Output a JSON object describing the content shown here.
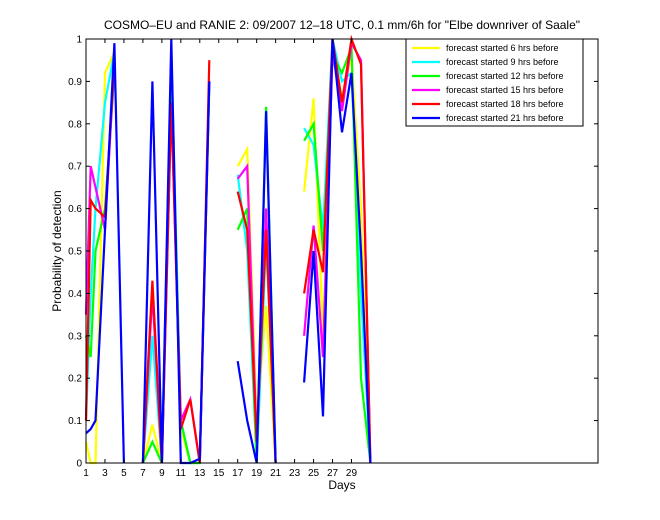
{
  "chart_data": {
    "type": "line",
    "title": "COSMO–EU and RANIE 2: 09/2007 12–18 UTC, 0.1 mm/6h for \"Elbe downriver of Saale\"",
    "xlabel": "Days",
    "ylabel": "Probability of detection",
    "xlim": [
      1,
      55
    ],
    "ylim": [
      0,
      1
    ],
    "xticks": [
      1,
      3,
      5,
      7,
      9,
      11,
      13,
      15,
      17,
      19,
      21,
      23,
      25,
      27,
      29
    ],
    "yticks": [
      0,
      0.1,
      0.2,
      0.3,
      0.4,
      0.5,
      0.6,
      0.7,
      0.8,
      0.9,
      1
    ],
    "ytick_labels": [
      "0",
      "0.1",
      "0.2",
      "0.3",
      "0.4",
      "0.5",
      "0.6",
      "0.7",
      "0.8",
      "0.9",
      "1"
    ],
    "legend_position": "top-right",
    "x": [
      1,
      1.5,
      2,
      3,
      4,
      5,
      6,
      7,
      8,
      9,
      10,
      11,
      12,
      13,
      14,
      15,
      16,
      17,
      18,
      19,
      20,
      21,
      22,
      23,
      24,
      25,
      26,
      27,
      28,
      29,
      30,
      31
    ],
    "series": [
      {
        "name": "forecast started  6 hrs before",
        "color": "#ffff00",
        "values": [
          0.05,
          0.0,
          0.0,
          0.92,
          0.97,
          null,
          null,
          0.0,
          0.09,
          0.0,
          0.9,
          0.08,
          0.0,
          0.0,
          0.88,
          null,
          null,
          0.7,
          0.74,
          0.1,
          0.37,
          0.0,
          null,
          null,
          0.64,
          0.86,
          0.3,
          0.98,
          0.86,
          0.96,
          0.6,
          0.0
        ]
      },
      {
        "name": "forecast started  9 hrs before",
        "color": "#00ffff",
        "values": [
          0.1,
          0.4,
          0.6,
          0.85,
          0.97,
          null,
          null,
          0.0,
          0.3,
          0.0,
          0.97,
          0.1,
          0.0,
          0.0,
          0.9,
          null,
          null,
          0.68,
          0.5,
          0.0,
          0.52,
          0.02,
          null,
          null,
          0.79,
          0.75,
          0.55,
          1.0,
          0.9,
          0.92,
          0.4,
          0.0
        ]
      },
      {
        "name": "forecast started  12 hrs before",
        "color": "#00ff00",
        "values": [
          0.3,
          0.25,
          0.5,
          0.6,
          0.92,
          null,
          null,
          0.0,
          0.05,
          0.0,
          0.92,
          0.1,
          0.0,
          0.0,
          0.9,
          null,
          null,
          0.55,
          0.6,
          0.0,
          0.84,
          0.0,
          null,
          null,
          0.76,
          0.8,
          0.5,
          0.96,
          0.92,
          0.98,
          0.2,
          0.0
        ]
      },
      {
        "name": "forecast started  15 hrs before",
        "color": "#ff00ff",
        "values": [
          0.35,
          0.7,
          0.65,
          0.55,
          0.95,
          null,
          null,
          0.0,
          0.4,
          0.0,
          0.85,
          0.1,
          0.15,
          0.0,
          0.9,
          null,
          null,
          0.67,
          0.7,
          0.05,
          0.6,
          0.0,
          null,
          null,
          0.3,
          0.56,
          0.25,
          0.97,
          0.83,
          0.99,
          0.95,
          0.0
        ]
      },
      {
        "name": "forecast started  18 hrs before",
        "color": "#ff0000",
        "values": [
          0.1,
          0.62,
          0.6,
          0.58,
          0.95,
          null,
          null,
          0.0,
          0.43,
          0.0,
          0.85,
          0.08,
          0.15,
          0.0,
          0.95,
          null,
          null,
          0.64,
          0.55,
          0.05,
          0.55,
          0.0,
          null,
          null,
          0.4,
          0.55,
          0.45,
          1.0,
          0.85,
          1.0,
          0.94,
          0.0
        ]
      },
      {
        "name": "forecast started  21 hrs before",
        "color": "#0000ff",
        "values": [
          0.07,
          0.08,
          0.1,
          0.55,
          0.99,
          0.0,
          null,
          0.0,
          0.9,
          0.0,
          1.0,
          0.0,
          0.0,
          0.01,
          0.9,
          null,
          null,
          0.24,
          0.1,
          0.0,
          0.83,
          0.0,
          null,
          null,
          0.19,
          0.5,
          0.11,
          1.0,
          0.78,
          0.92,
          0.5,
          0.0
        ]
      }
    ]
  }
}
